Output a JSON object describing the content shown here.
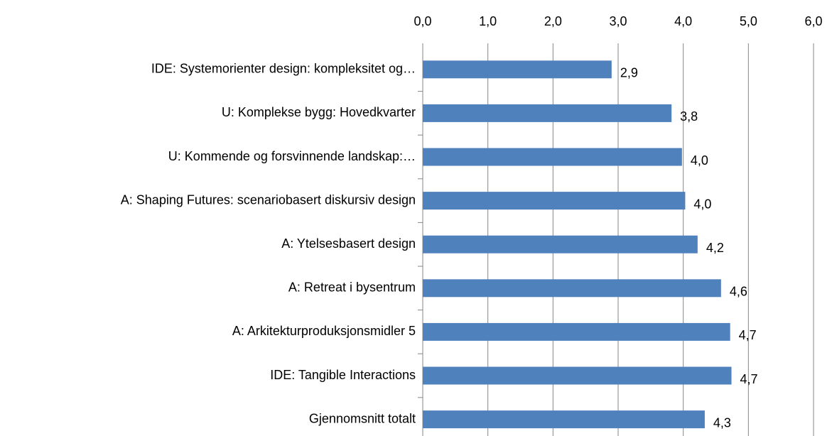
{
  "chart_data": {
    "type": "bar",
    "orientation": "horizontal",
    "categories": [
      "IDE: Systemorienter design: kompleksitet og…",
      "U: Komplekse bygg: Hovedkvarter",
      "U: Kommende og forsvinnende landskap:…",
      "A: Shaping Futures: scenariobasert diskursiv design",
      "A: Ytelsesbasert design",
      "A: Retreat i bysentrum",
      "A: Arkitekturproduksjonsmidler 5",
      "IDE: Tangible Interactions",
      "Gjennomsnitt totalt"
    ],
    "values": [
      2.9,
      3.82,
      3.98,
      4.03,
      4.22,
      4.58,
      4.72,
      4.74,
      4.33
    ],
    "value_labels": [
      "2,9",
      "3,8",
      "4,0",
      "4,0",
      "4,2",
      "4,6",
      "4,7",
      "4,7",
      "4,3"
    ],
    "color": "#4f81bd",
    "xlim": [
      0,
      6
    ],
    "xticks": [
      {
        "value": 0,
        "label": "0,0"
      },
      {
        "value": 1,
        "label": "1,0"
      },
      {
        "value": 2,
        "label": "2,0"
      },
      {
        "value": 3,
        "label": "3,0"
      },
      {
        "value": 4,
        "label": "4,0"
      },
      {
        "value": 5,
        "label": "5,0"
      },
      {
        "value": 6,
        "label": "6,0"
      }
    ],
    "grid": true
  }
}
